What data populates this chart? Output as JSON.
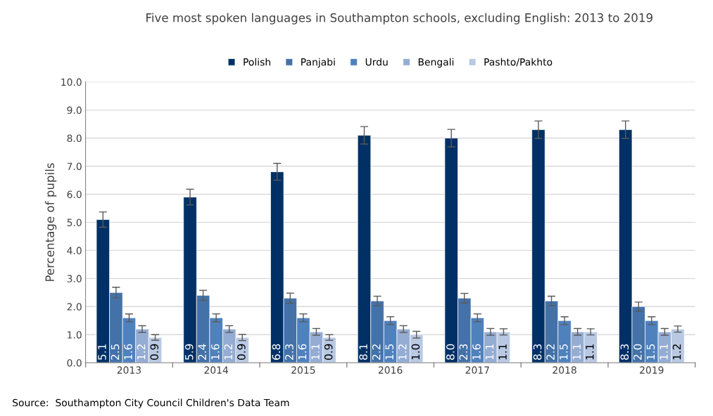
{
  "chart_data": {
    "type": "bar",
    "title": "Five most spoken languages in Southampton schools, excluding English: 2013 to 2019",
    "ylabel": "Percentage of pupils",
    "categories": [
      "2013",
      "2014",
      "2015",
      "2016",
      "2017",
      "2018",
      "2019"
    ],
    "series": [
      {
        "name": "Polish",
        "color": "#003066",
        "values": [
          5.1,
          5.9,
          6.8,
          8.1,
          8.0,
          8.3,
          8.3
        ],
        "errors": [
          0.27,
          0.28,
          0.3,
          0.31,
          0.31,
          0.31,
          0.31
        ],
        "value_labels": [
          "5.1",
          "5.9",
          "6.8",
          "8.1",
          "8.0",
          "8.3",
          "8.3"
        ]
      },
      {
        "name": "Panjabi",
        "color": "#4472a8",
        "values": [
          2.5,
          2.4,
          2.3,
          2.2,
          2.3,
          2.2,
          2.0
        ],
        "errors": [
          0.19,
          0.18,
          0.18,
          0.17,
          0.17,
          0.17,
          0.16
        ],
        "value_labels": [
          "2.5",
          "2.4",
          "2.3",
          "2.2",
          "2.3",
          "2.2",
          "2.0"
        ]
      },
      {
        "name": "Urdu",
        "color": "#4f81bd",
        "values": [
          1.6,
          1.6,
          1.6,
          1.5,
          1.6,
          1.5,
          1.5
        ],
        "errors": [
          0.14,
          0.14,
          0.14,
          0.14,
          0.14,
          0.14,
          0.14
        ],
        "value_labels": [
          "1.6",
          "1.6",
          "1.6",
          "1.5",
          "1.6",
          "1.5",
          "1.5"
        ]
      },
      {
        "name": "Bengali",
        "color": "#95acd3",
        "values": [
          1.2,
          1.2,
          1.1,
          1.2,
          1.1,
          1.1,
          1.1
        ],
        "errors": [
          0.12,
          0.12,
          0.12,
          0.12,
          0.12,
          0.12,
          0.12
        ],
        "value_labels": [
          "1.2",
          "1.2",
          "1.1",
          "1.2",
          "1.1",
          "1.1",
          "1.1"
        ]
      },
      {
        "name": "Pashto/Pakhto",
        "color": "#b9c9e3",
        "values": [
          0.9,
          0.9,
          0.9,
          1.0,
          1.1,
          1.1,
          1.2
        ],
        "errors": [
          0.1,
          0.11,
          0.1,
          0.12,
          0.11,
          0.11,
          0.11
        ],
        "value_labels": [
          "0.9",
          "0.9",
          "0.9",
          "1.0",
          "1.1",
          "1.1",
          "1.2"
        ]
      }
    ],
    "ylim": [
      0,
      10
    ],
    "yticks": [
      {
        "value": 0,
        "label": "0.0"
      },
      {
        "value": 1,
        "label": "1.0"
      },
      {
        "value": 2,
        "label": "2.0"
      },
      {
        "value": 3,
        "label": "3.0"
      },
      {
        "value": 4,
        "label": "4.0"
      },
      {
        "value": 5,
        "label": "5.0"
      },
      {
        "value": 6,
        "label": "6.0"
      },
      {
        "value": 7,
        "label": "7.0"
      },
      {
        "value": 8,
        "label": "8.0"
      },
      {
        "value": 9,
        "label": "9.0"
      },
      {
        "value": 10,
        "label": "10.0"
      }
    ],
    "grid": "y",
    "legend": "top",
    "annotations": [
      "Source:  Southampton City Council Children's Data Team"
    ]
  }
}
